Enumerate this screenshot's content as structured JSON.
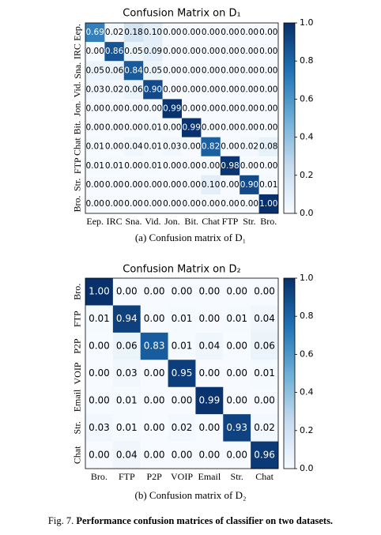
{
  "chart_data": [
    {
      "type": "heatmap",
      "title": "Confusion Matrix on D₁",
      "caption": "(a) Confusion matrix of D₁",
      "categories": [
        "Eep.",
        "IRC",
        "Sna.",
        "Vid.",
        "Jon.",
        "Bit.",
        "Chat",
        "FTP",
        "Str.",
        "Bro."
      ],
      "values": [
        [
          0.69,
          0.02,
          0.18,
          0.1,
          0,
          0,
          0,
          0,
          0,
          0
        ],
        [
          0,
          0.86,
          0.05,
          0.09,
          0,
          0,
          0,
          0,
          0,
          0
        ],
        [
          0.05,
          0.06,
          0.84,
          0.05,
          0,
          0,
          0,
          0,
          0,
          0
        ],
        [
          0.03,
          0.02,
          0.06,
          0.9,
          0,
          0,
          0,
          0,
          0,
          0
        ],
        [
          0,
          0,
          0,
          0,
          0.99,
          0,
          0,
          0,
          0,
          0
        ],
        [
          0,
          0,
          0,
          0.01,
          0,
          0.99,
          0,
          0,
          0,
          0
        ],
        [
          0.01,
          0,
          0.04,
          0.01,
          0.03,
          0,
          0.82,
          0,
          0.02,
          0.08
        ],
        [
          0.01,
          0.01,
          0,
          0.01,
          0,
          0,
          0,
          0.98,
          0,
          0
        ],
        [
          0,
          0,
          0,
          0,
          0,
          0,
          0.1,
          0,
          0.9,
          0.01
        ],
        [
          0,
          0,
          0,
          0,
          0,
          0,
          0,
          0,
          0,
          1.0
        ]
      ],
      "value_labels": [
        [
          "0.69",
          "0.02",
          "0.18",
          "0.10",
          "0.00",
          "0.00",
          "0.00",
          "0.00",
          "0.00",
          "0.00"
        ],
        [
          "0.00",
          "0.86",
          "0.05",
          "0.09",
          "0.00",
          "0.00",
          "0.00",
          "0.00",
          "0.00",
          "0.00"
        ],
        [
          "0.05",
          "0.06",
          "0.84",
          "0.05",
          "0.00",
          "0.00",
          "0.00",
          "0.00",
          "0.00",
          "0.00"
        ],
        [
          "0.03",
          "0.02",
          "0.06",
          "0.90",
          "0.00",
          "0.00",
          "0.00",
          "0.00",
          "0.00",
          "0.00"
        ],
        [
          "0.00",
          "0.00",
          "0.00",
          "0.00",
          "0.99",
          "0.00",
          "0.00",
          "0.00",
          "0.00",
          "0.00"
        ],
        [
          "0.00",
          "0.00",
          "0.00",
          "0.01",
          "0.00",
          "0.99",
          "0.00",
          "0.00",
          "0.00",
          "0.00"
        ],
        [
          "0.01",
          "0.00",
          "0.04",
          "0.01",
          "0.03",
          "0.00",
          "0.82",
          "0.00",
          "0.02",
          "0.08"
        ],
        [
          "0.01",
          "0.01",
          "0.00",
          "0.01",
          "0.00",
          "0.00",
          "0.00",
          "0.98",
          "0.00",
          "0.00"
        ],
        [
          "0.00",
          "0.00",
          "0.00",
          "0.00",
          "0.00",
          "0.00",
          "0.10",
          "0.00",
          "0.90",
          "0.01"
        ],
        [
          "0.00",
          "0.00",
          "0.00",
          "0.00",
          "0.00",
          "0.00",
          "0.00",
          "0.00",
          "0.00",
          "1.00"
        ]
      ],
      "colormap": "Blues",
      "colorbar_lim": [
        0,
        1
      ],
      "colorbar_ticks": [
        {
          "value": 0,
          "label": "0.0"
        },
        0.2,
        0.4,
        0.6,
        0.8,
        {
          "value": 1,
          "label": "1.0"
        }
      ]
    },
    {
      "type": "heatmap",
      "title": "Confusion Matrix on D₂",
      "caption": "(b) Confusion matrix of D₂",
      "categories": [
        "Bro.",
        "FTP",
        "P2P",
        "VOIP",
        "Email",
        "Str.",
        "Chat"
      ],
      "values": [
        [
          1.0,
          0,
          0,
          0,
          0,
          0,
          0
        ],
        [
          0.01,
          0.94,
          0,
          0.01,
          0,
          0.01,
          0.04
        ],
        [
          0,
          0.06,
          0.83,
          0.01,
          0.04,
          0,
          0.06
        ],
        [
          0,
          0.03,
          0,
          0.95,
          0,
          0,
          0.01
        ],
        [
          0,
          0.01,
          0,
          0,
          0.99,
          0,
          0
        ],
        [
          0.03,
          0.01,
          0,
          0.02,
          0,
          0.93,
          0.02
        ],
        [
          0,
          0.04,
          0,
          0,
          0,
          0,
          0.96
        ]
      ],
      "value_labels": [
        [
          "1.00",
          "0.00",
          "0.00",
          "0.00",
          "0.00",
          "0.00",
          "0.00"
        ],
        [
          "0.01",
          "0.94",
          "0.00",
          "0.01",
          "0.00",
          "0.01",
          "0.04"
        ],
        [
          "0.00",
          "0.06",
          "0.83",
          "0.01",
          "0.04",
          "0.00",
          "0.06"
        ],
        [
          "0.00",
          "0.03",
          "0.00",
          "0.95",
          "0.00",
          "0.00",
          "0.01"
        ],
        [
          "0.00",
          "0.01",
          "0.00",
          "0.00",
          "0.99",
          "0.00",
          "0.00"
        ],
        [
          "0.03",
          "0.01",
          "0.00",
          "0.02",
          "0.00",
          "0.93",
          "0.02"
        ],
        [
          "0.00",
          "0.04",
          "0.00",
          "0.00",
          "0.00",
          "0.00",
          "0.96"
        ]
      ],
      "colormap": "Blues",
      "colorbar_lim": [
        0,
        1
      ],
      "colorbar_ticks": [
        {
          "value": 0,
          "label": "0.0"
        },
        0.2,
        0.4,
        0.6,
        0.8,
        {
          "value": 1,
          "label": "1.0"
        }
      ]
    }
  ],
  "figure_caption": {
    "label": "Fig. 7.",
    "text": "Performance confusion matrices of classifier on two datasets."
  }
}
